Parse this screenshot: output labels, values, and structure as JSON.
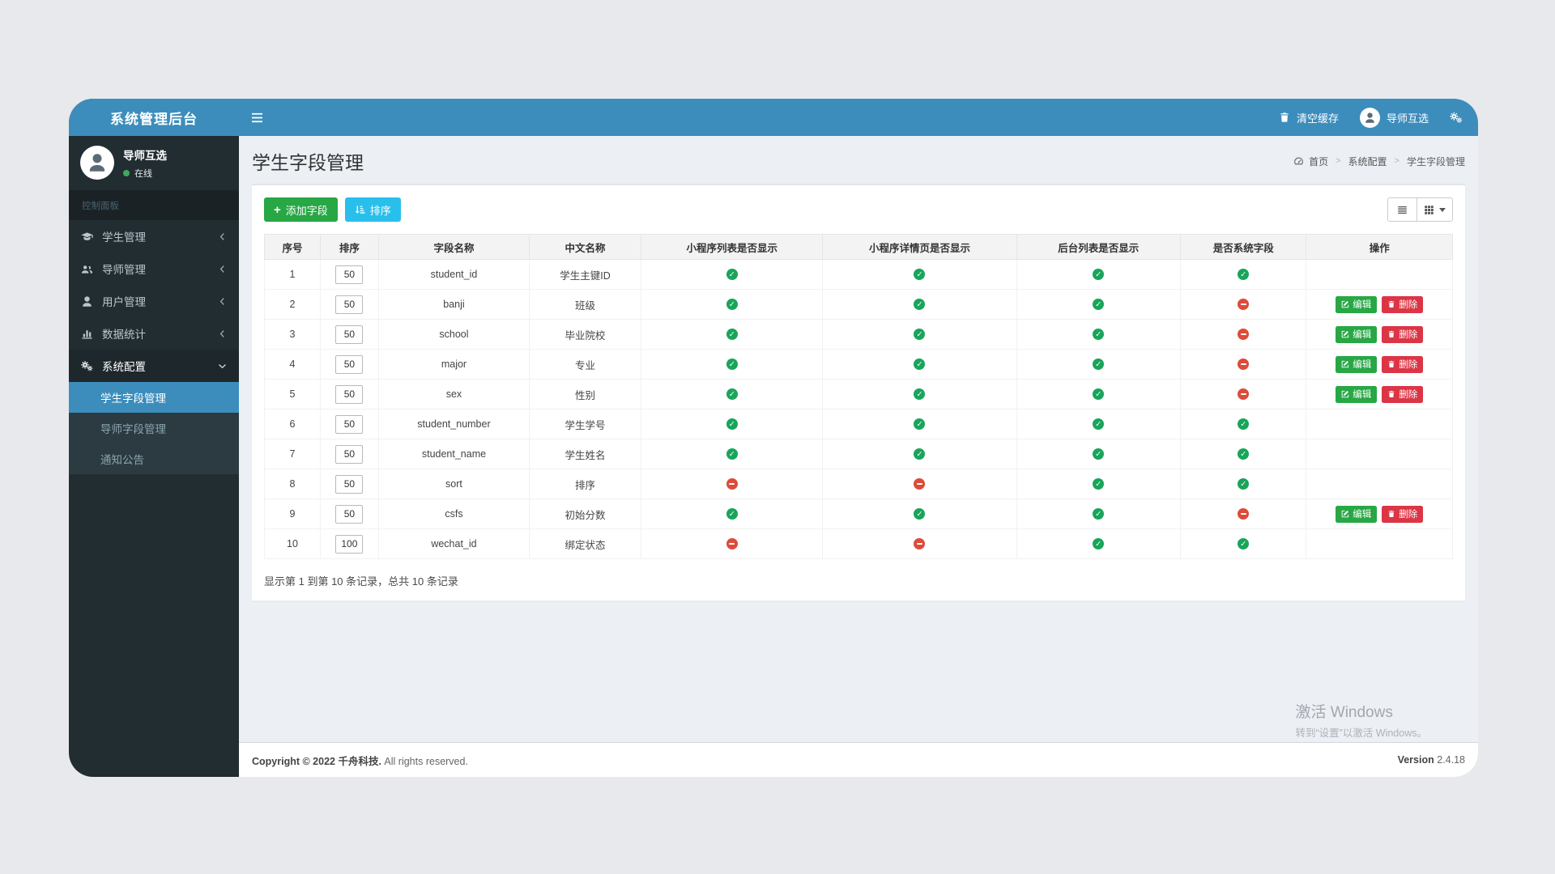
{
  "app": {
    "brand": "系统管理后台"
  },
  "colors": {
    "theme_blue": "#3c8dbc",
    "sidebar_dark": "#222d32",
    "submenu_dark": "#2c3b41",
    "content_bg": "#ecf0f5",
    "success_green": "#28a745",
    "info_cyan": "#29bfec",
    "danger_red": "#dc3545",
    "check_green": "#18a55a",
    "minus_red": "#dd4b39"
  },
  "topbar": {
    "clear_cache_label": "清空缓存",
    "username": "导师互选"
  },
  "sidebar": {
    "user": {
      "name": "导师互选",
      "status": "在线"
    },
    "section_label": "控制面板",
    "items": [
      {
        "label": "学生管理"
      },
      {
        "label": "导师管理"
      },
      {
        "label": "用户管理"
      },
      {
        "label": "数据统计"
      },
      {
        "label": "系统配置"
      }
    ],
    "submenu": [
      {
        "label": "学生字段管理"
      },
      {
        "label": "导师字段管理"
      },
      {
        "label": "通知公告"
      }
    ]
  },
  "content": {
    "title": "学生字段管理",
    "breadcrumb": [
      "首页",
      "系统配置",
      "学生字段管理"
    ],
    "toolbar": {
      "add_label": "添加字段",
      "sort_label": "排序"
    },
    "actions": {
      "edit_label": "编辑",
      "delete_label": "删除"
    },
    "table": {
      "headers": [
        "序号",
        "排序",
        "字段名称",
        "中文名称",
        "小程序列表是否显示",
        "小程序详情页是否显示",
        "后台列表是否显示",
        "是否系统字段",
        "操作"
      ],
      "rows": [
        {
          "seq": "1",
          "sort": "50",
          "field": "student_id",
          "cn": "学生主键ID",
          "mini_list": true,
          "mini_detail": true,
          "admin_list": true,
          "is_system": true,
          "has_actions": false
        },
        {
          "seq": "2",
          "sort": "50",
          "field": "banji",
          "cn": "班级",
          "mini_list": true,
          "mini_detail": true,
          "admin_list": true,
          "is_system": false,
          "has_actions": true
        },
        {
          "seq": "3",
          "sort": "50",
          "field": "school",
          "cn": "毕业院校",
          "mini_list": true,
          "mini_detail": true,
          "admin_list": true,
          "is_system": false,
          "has_actions": true
        },
        {
          "seq": "4",
          "sort": "50",
          "field": "major",
          "cn": "专业",
          "mini_list": true,
          "mini_detail": true,
          "admin_list": true,
          "is_system": false,
          "has_actions": true
        },
        {
          "seq": "5",
          "sort": "50",
          "field": "sex",
          "cn": "性别",
          "mini_list": true,
          "mini_detail": true,
          "admin_list": true,
          "is_system": false,
          "has_actions": true
        },
        {
          "seq": "6",
          "sort": "50",
          "field": "student_number",
          "cn": "学生学号",
          "mini_list": true,
          "mini_detail": true,
          "admin_list": true,
          "is_system": true,
          "has_actions": false
        },
        {
          "seq": "7",
          "sort": "50",
          "field": "student_name",
          "cn": "学生姓名",
          "mini_list": true,
          "mini_detail": true,
          "admin_list": true,
          "is_system": true,
          "has_actions": false
        },
        {
          "seq": "8",
          "sort": "50",
          "field": "sort",
          "cn": "排序",
          "mini_list": false,
          "mini_detail": false,
          "admin_list": true,
          "is_system": true,
          "has_actions": false
        },
        {
          "seq": "9",
          "sort": "50",
          "field": "csfs",
          "cn": "初始分数",
          "mini_list": true,
          "mini_detail": true,
          "admin_list": true,
          "is_system": false,
          "has_actions": true
        },
        {
          "seq": "10",
          "sort": "100",
          "field": "wechat_id",
          "cn": "绑定状态",
          "mini_list": false,
          "mini_detail": false,
          "admin_list": true,
          "is_system": true,
          "has_actions": false
        }
      ],
      "summary": "显示第 1 到第 10 条记录，总共 10 条记录"
    }
  },
  "watermark": {
    "line1": "激活 Windows",
    "line2": "转到“设置”以激活 Windows。"
  },
  "footer": {
    "copyright_bold": "Copyright © 2022 千舟科技.",
    "copyright_rest": "All rights reserved.",
    "version_label": "Version",
    "version_value": "2.4.18"
  }
}
